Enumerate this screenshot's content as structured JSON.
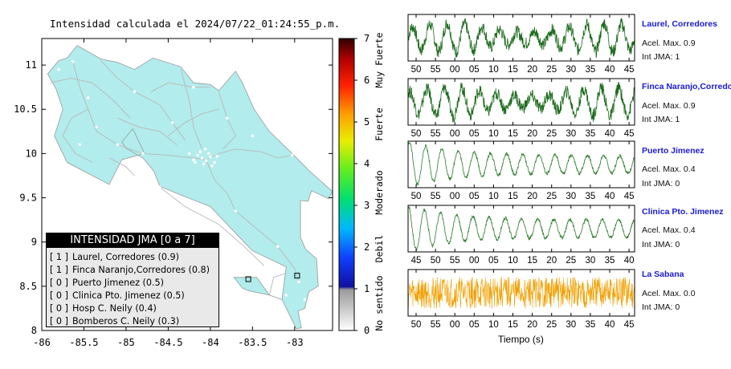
{
  "map": {
    "title": "Intensidad calculada el 2024/07/22_01:24:55_p.m.",
    "x_ticks": [
      "-86",
      "-85.5",
      "-85",
      "-84.5",
      "-84",
      "-83.5",
      "-83"
    ],
    "y_ticks": [
      "11",
      "10.5",
      "10",
      "9.5",
      "9",
      "8.5",
      "8"
    ],
    "land_color": "#b2ecec",
    "road_color": "#b8b8b8"
  },
  "colorbar": {
    "ticks": [
      "7",
      "6",
      "5",
      "4",
      "3",
      "2",
      "1",
      "0"
    ],
    "labels": [
      "Muy Fuerte",
      "Fuerte",
      "Moderado",
      "Debil",
      "No sentido"
    ]
  },
  "legend": {
    "title": "INTENSIDAD JMA [0 a 7]",
    "items": [
      {
        "level": "[ 1 ]",
        "station": "Laurel, Corredores (0.9)"
      },
      {
        "level": "[ 1 ]",
        "station": "Finca Naranjo,Corredores (0.8)"
      },
      {
        "level": "[ 0 ]",
        "station": "Puerto Jimenez (0.5)"
      },
      {
        "level": "[ 0 ]",
        "station": "Clinica Pto. Jimenez (0.5)"
      },
      {
        "level": "[ 0 ]",
        "station": "Hosp C. Neily (0.4)"
      },
      {
        "level": "[ 0 ]",
        "station": "Bomberos C. Neily (0.3)"
      }
    ]
  },
  "traces": [
    {
      "name": "Laurel, Corredores",
      "acel": "Acel. Max. 0.9",
      "int": "Int JMA: 1",
      "color": "#1e6b1e",
      "ticks": [
        "50",
        "55",
        "00",
        "05",
        "10",
        "15",
        "20",
        "25",
        "30",
        "35",
        "40",
        "45"
      ]
    },
    {
      "name": "Finca Naranjo,Corredores",
      "acel": "Acel. Max. 0.9",
      "int": "Int JMA: 1",
      "color": "#1e6b1e",
      "ticks": [
        "50",
        "55",
        "00",
        "05",
        "10",
        "15",
        "20",
        "25",
        "30",
        "35",
        "40",
        "45"
      ]
    },
    {
      "name": "Puerto Jimenez",
      "acel": "Acel. Max. 0.4",
      "int": "Int JMA: 0",
      "color": "#2a7a2a",
      "ticks": [
        "50",
        "55",
        "00",
        "05",
        "10",
        "15",
        "20",
        "25",
        "30",
        "35",
        "40",
        "45"
      ]
    },
    {
      "name": "Clinica Pto. Jimenez",
      "acel": "Acel. Max. 0.4",
      "int": "Int JMA: 0",
      "color": "#2a7a2a",
      "ticks": [
        "45",
        "50",
        "55",
        "00",
        "05",
        "10",
        "15",
        "20",
        "25",
        "30",
        "35",
        "40"
      ]
    },
    {
      "name": "La Sabana",
      "acel": "Acel. Max. 0.0",
      "int": "Int JMA: 0",
      "color": "#f0a000",
      "ticks": [
        "50",
        "55",
        "00",
        "05",
        "10",
        "15",
        "20",
        "25",
        "30",
        "35",
        "40",
        "45"
      ]
    }
  ],
  "xlabel": "Tiempo (s)"
}
